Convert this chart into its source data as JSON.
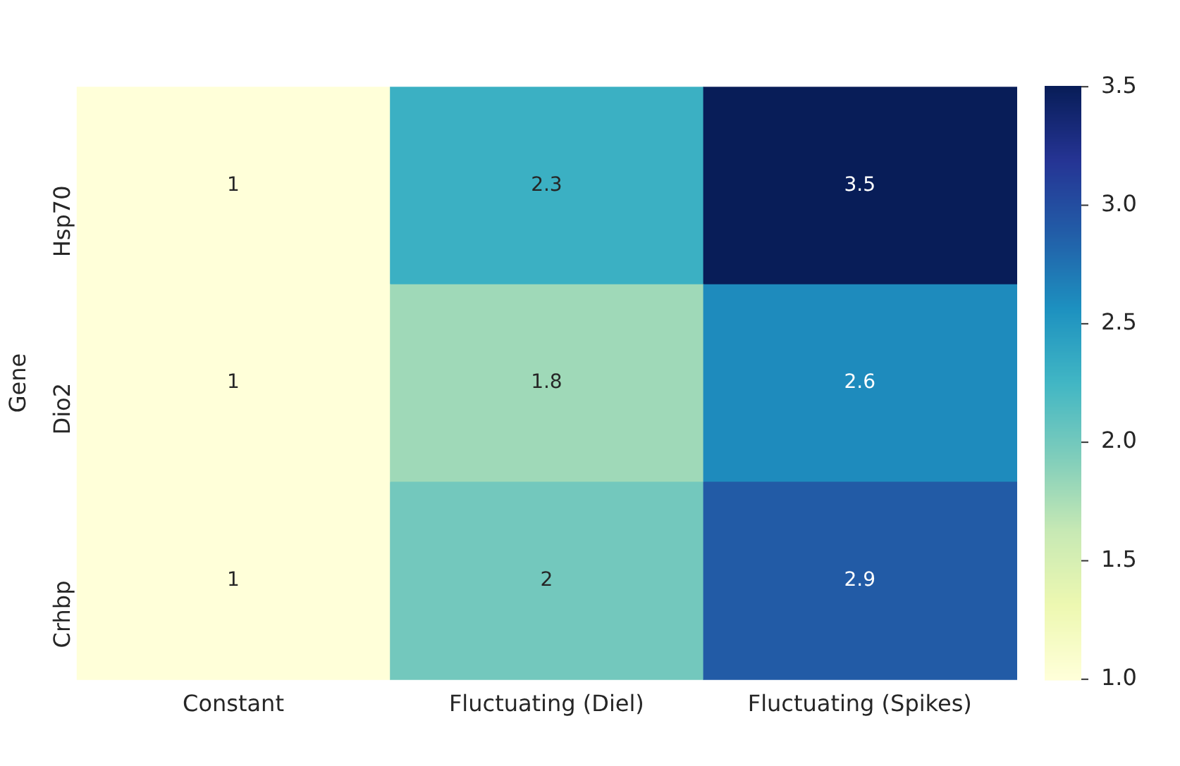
{
  "chart_data": {
    "type": "heatmap",
    "ylabel": "Gene",
    "categories": [
      "Constant",
      "Fluctuating (Diel)",
      "Fluctuating (Spikes)"
    ],
    "y_categories": [
      "Hsp70",
      "Dio2",
      "Crhbp"
    ],
    "cells": [
      [
        1,
        2.3,
        3.5
      ],
      [
        1,
        1.8,
        2.6
      ],
      [
        1,
        2,
        2.9
      ]
    ],
    "data_labels": true,
    "clim": [
      1.0,
      3.5
    ],
    "cticks": [
      {
        "value": 1.0,
        "label": "1.0"
      },
      {
        "value": 1.5,
        "label": "1.5"
      },
      {
        "value": 2.0,
        "label": "2.0"
      },
      {
        "value": 2.5,
        "label": "2.5"
      },
      {
        "value": 3.0,
        "label": "3.0"
      },
      {
        "value": 3.5,
        "label": "3.5"
      }
    ]
  }
}
